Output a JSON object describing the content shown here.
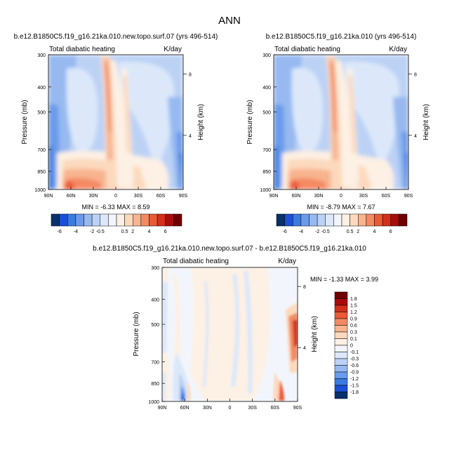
{
  "main_title": "ANN",
  "panels": [
    {
      "case_title": "b.e12.B1850C5.f19_g16.21ka.010.new.topo.surf.07 (yrs 496-514)",
      "variable": "Total diabatic heating",
      "units": "K/day",
      "y_label": "Pressure (mb)",
      "y2_label": "Height (km)",
      "stats": "MIN =  -6.33  MAX =   8.59"
    },
    {
      "case_title": "b.e12.B1850C5.f19_g16.21ka.010 (yrs 496-514)",
      "variable": "Total diabatic heating",
      "units": "K/day",
      "y_label": "Pressure (mb)",
      "y2_label": "Height (km)",
      "stats": "MIN =  -8.79  MAX =   7.67"
    },
    {
      "case_title": "b.e12.B1850C5.f19_g16.21ka.010.new.topo.surf.07 - b.e12.B1850C5.f19_g16.21ka.010",
      "variable": "Total diabatic heating",
      "units": "K/day",
      "y_label": "Pressure (mb)",
      "y2_label": "Height (km)",
      "stats": "MIN =  -1.33  MAX =   3.99"
    }
  ],
  "axes": {
    "x_ticks": [
      "90N",
      "60N",
      "30N",
      "0",
      "30S",
      "60S",
      "90S"
    ],
    "y_ticks": [
      "300",
      "400",
      "500",
      "700",
      "850",
      "1000"
    ],
    "y2_ticks": [
      "8",
      "4"
    ]
  },
  "colorbars": {
    "abs_labels": [
      "-6",
      "-4",
      "-2",
      "-0.5",
      "0.5",
      "2",
      "4",
      "6"
    ],
    "abs_colors": [
      "#08306b",
      "#1b4fd6",
      "#3a7be0",
      "#6a9bea",
      "#97b9f0",
      "#bcd2f5",
      "#dce8fa",
      "#f2f6fc",
      "#fdf0e4",
      "#fcd9bd",
      "#f8b48e",
      "#f38a64",
      "#ea5a37",
      "#d3301b",
      "#a80d0b",
      "#700000"
    ],
    "diff_labels": [
      "1.8",
      "1.5",
      "1.2",
      "0.9",
      "0.6",
      "0.3",
      "0.1",
      "0",
      "-0.1",
      "-0.3",
      "-0.6",
      "-0.9",
      "-1.2",
      "-1.5",
      "-1.8"
    ],
    "diff_colors": [
      "#700000",
      "#a80d0b",
      "#d3301b",
      "#ea5a37",
      "#f38a64",
      "#f8b48e",
      "#fcd9bd",
      "#fdf0e4",
      "#f2f6fc",
      "#dce8fa",
      "#bcd2f5",
      "#97b9f0",
      "#6a9bea",
      "#3a7be0",
      "#1b4fd6",
      "#08306b"
    ]
  },
  "chart_data": [
    {
      "type": "heatmap",
      "title": "b.e12.B1850C5.f19_g16.21ka.010.new.topo.surf.07 (yrs 496-514)",
      "subtitle": "Total diabatic heating",
      "units": "K/day",
      "xlabel": "",
      "ylabel": "Pressure (mb)",
      "y2label": "Height (km)",
      "x_range": [
        "90N",
        "90S"
      ],
      "y_range_mb": [
        300,
        1000
      ],
      "min": -6.33,
      "max": 8.59,
      "levels": [
        -6,
        -5,
        -4,
        -3,
        -2,
        -1,
        -0.5,
        0,
        0.5,
        1,
        2,
        3,
        4,
        5,
        6
      ]
    },
    {
      "type": "heatmap",
      "title": "b.e12.B1850C5.f19_g16.21ka.010 (yrs 496-514)",
      "subtitle": "Total diabatic heating",
      "units": "K/day",
      "xlabel": "",
      "ylabel": "Pressure (mb)",
      "y2label": "Height (km)",
      "x_range": [
        "90N",
        "90S"
      ],
      "y_range_mb": [
        300,
        1000
      ],
      "min": -8.79,
      "max": 7.67,
      "levels": [
        -6,
        -5,
        -4,
        -3,
        -2,
        -1,
        -0.5,
        0,
        0.5,
        1,
        2,
        3,
        4,
        5,
        6
      ]
    },
    {
      "type": "heatmap",
      "title": "b.e12.B1850C5.f19_g16.21ka.010.new.topo.surf.07 - b.e12.B1850C5.f19_g16.21ka.010",
      "subtitle": "Total diabatic heating",
      "units": "K/day",
      "xlabel": "",
      "ylabel": "Pressure (mb)",
      "y2label": "Height (km)",
      "x_range": [
        "90N",
        "90S"
      ],
      "y_range_mb": [
        300,
        1000
      ],
      "min": -1.33,
      "max": 3.99,
      "levels": [
        -1.8,
        -1.5,
        -1.2,
        -0.9,
        -0.6,
        -0.3,
        -0.1,
        0,
        0.1,
        0.3,
        0.6,
        0.9,
        1.2,
        1.5,
        1.8
      ]
    }
  ]
}
